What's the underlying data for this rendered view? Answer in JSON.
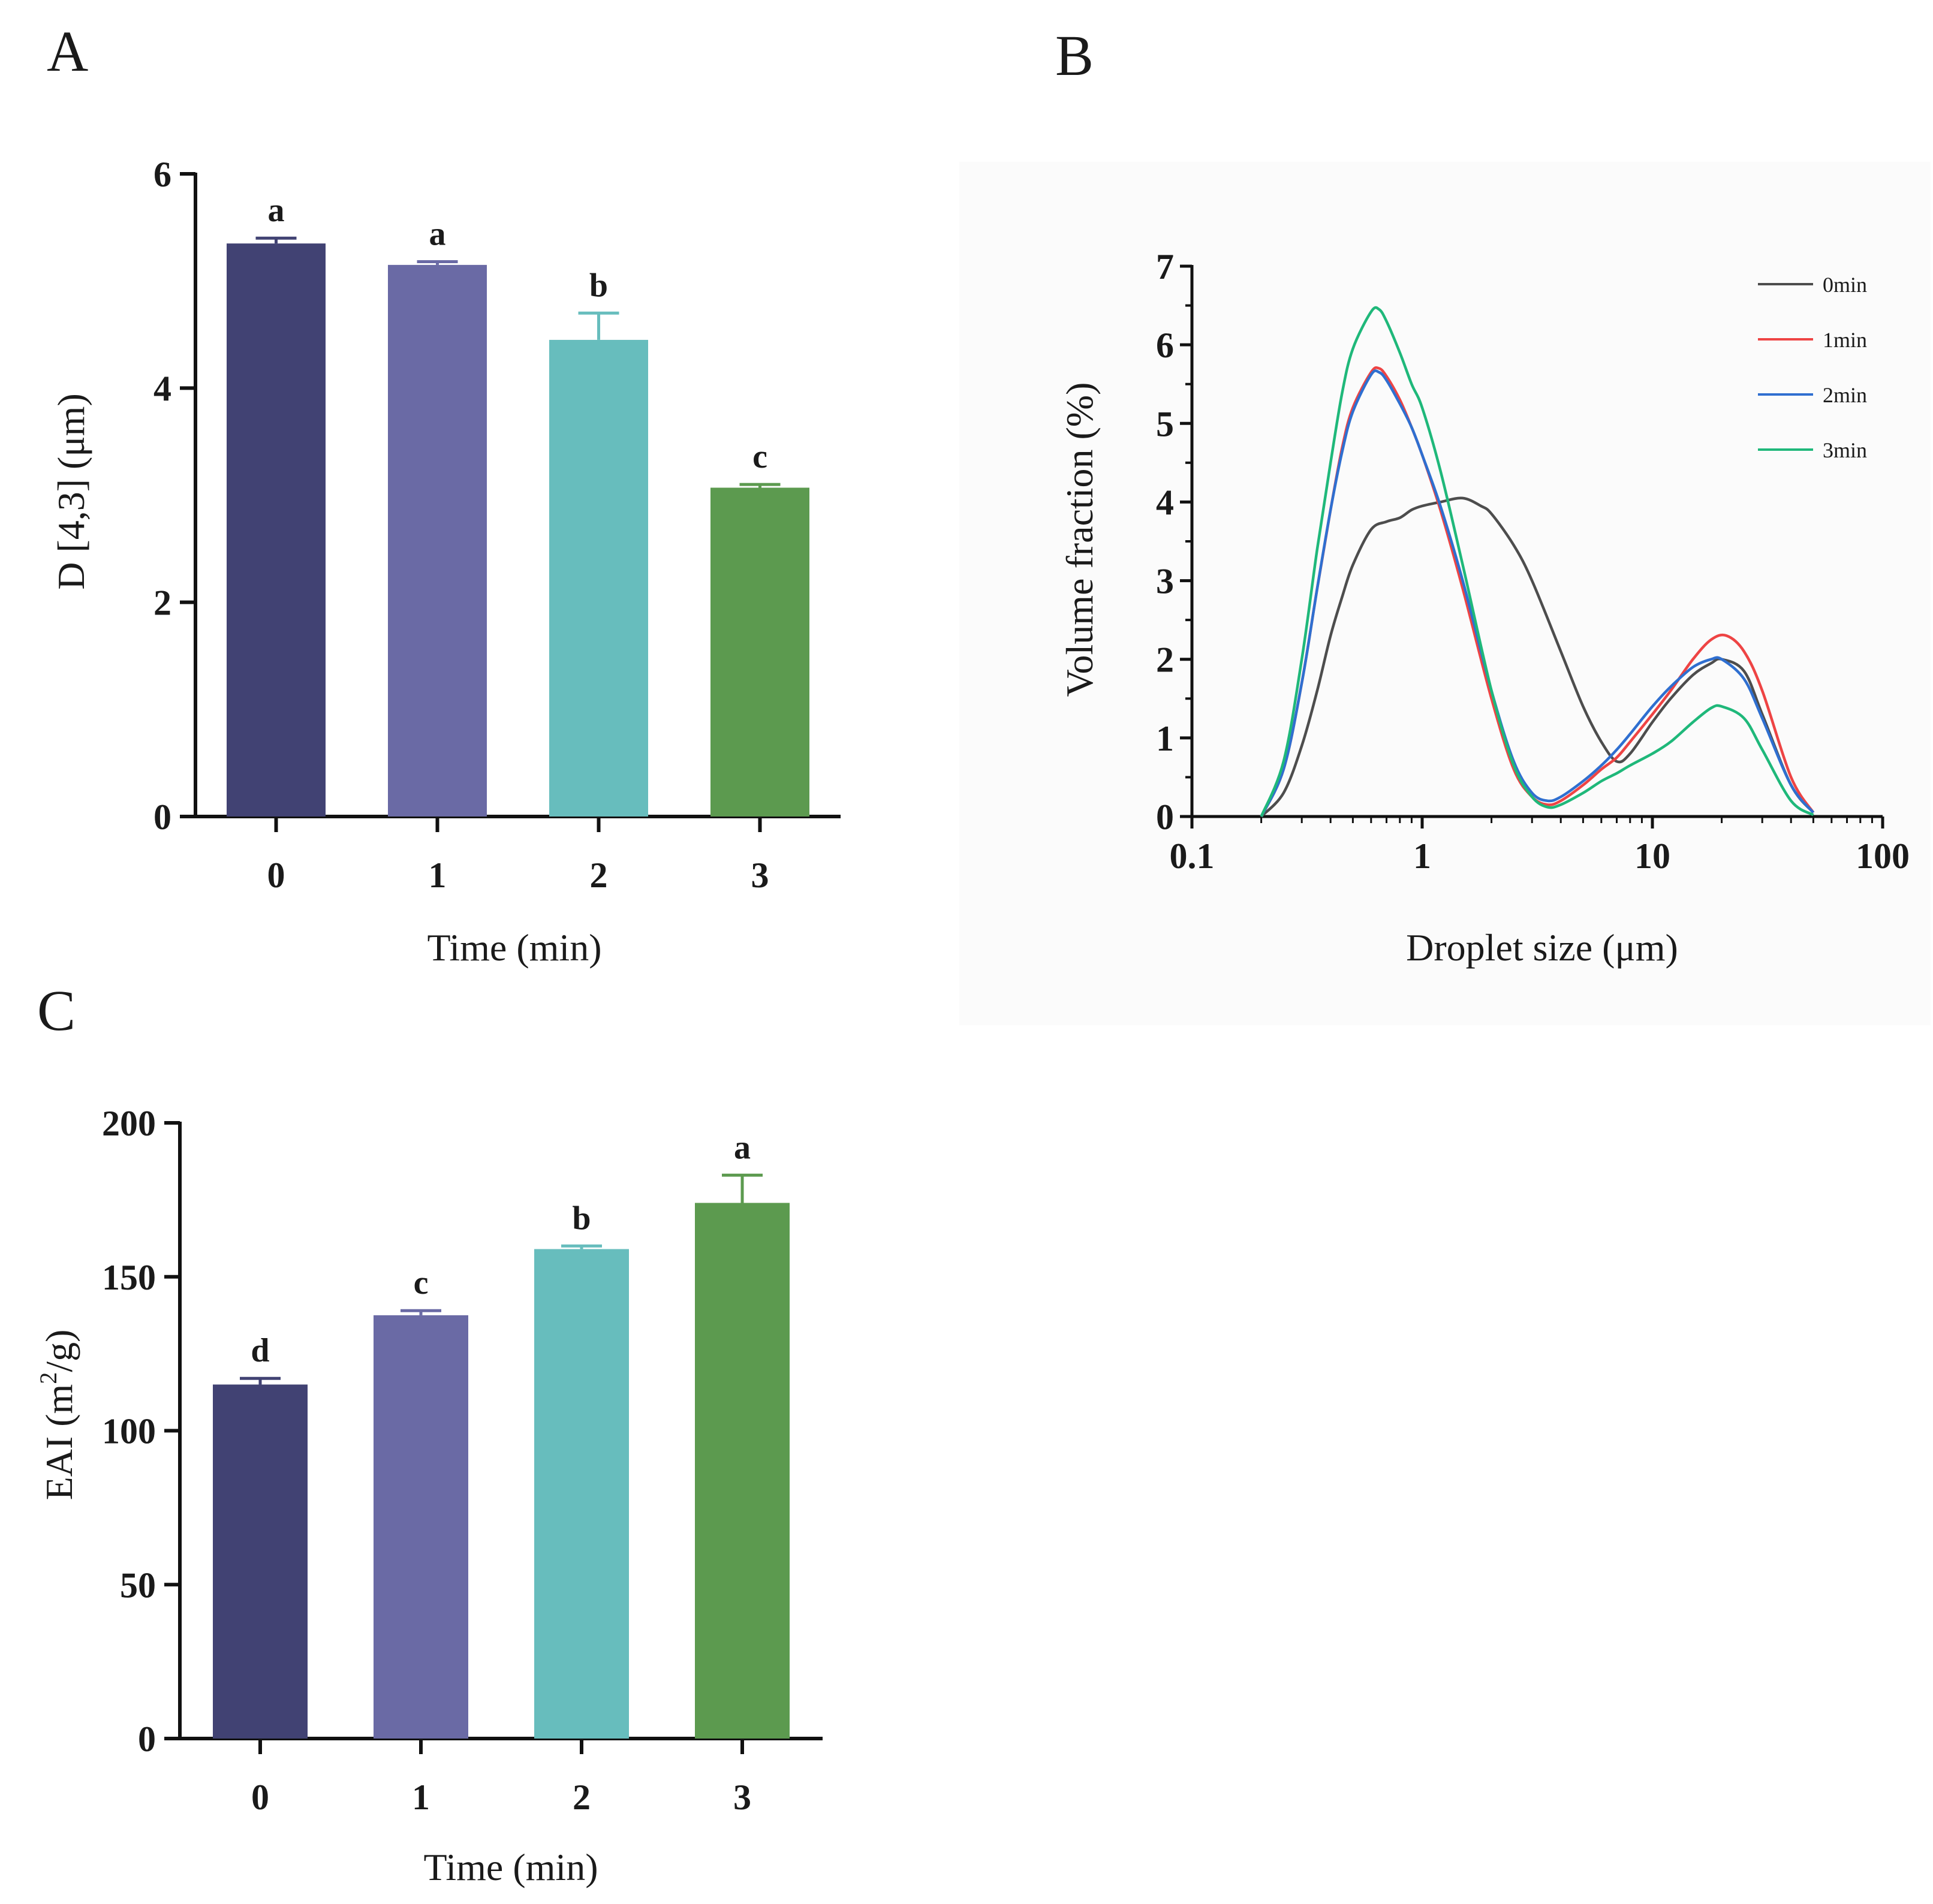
{
  "chart_data": [
    {
      "panel": "A",
      "type": "bar",
      "title": "",
      "xlabel": "Time (min)",
      "ylabel": "D [4,3] (μm)",
      "categories": [
        "0",
        "1",
        "2",
        "3"
      ],
      "values": [
        5.35,
        5.15,
        4.45,
        3.07
      ],
      "errors": [
        0.05,
        0.03,
        0.25,
        0.03
      ],
      "significance": [
        "a",
        "a",
        "b",
        "c"
      ],
      "ylim": [
        0,
        6
      ],
      "yticks": [
        0,
        2,
        4,
        6
      ],
      "colors": [
        "#414273",
        "#6a6aa5",
        "#67bdbd",
        "#5c9a4f"
      ],
      "grid": false
    },
    {
      "panel": "B",
      "type": "line",
      "title": "",
      "xlabel": "Droplet size (μm)",
      "ylabel": "Volume fraction (%)",
      "xscale": "log",
      "xlim": [
        0.1,
        100
      ],
      "ylim": [
        0,
        7
      ],
      "xticks": [
        "0.1",
        "1",
        "10",
        "100"
      ],
      "yticks": [
        0,
        1,
        2,
        3,
        4,
        5,
        6,
        7
      ],
      "legend_position": "top-right",
      "grid": false,
      "series": [
        {
          "name": "0min",
          "color": "#4d4d4d",
          "x": [
            0.2,
            0.25,
            0.3,
            0.35,
            0.4,
            0.45,
            0.5,
            0.6,
            0.7,
            0.8,
            0.9,
            1.0,
            1.2,
            1.5,
            1.8,
            2.0,
            2.5,
            3.0,
            4.0,
            5.0,
            6.0,
            7.0,
            8.0,
            10.0,
            12.0,
            15.0,
            18.0,
            20.0,
            25.0,
            30.0,
            40.0,
            50.0
          ],
          "y": [
            0,
            0.3,
            0.9,
            1.6,
            2.3,
            2.8,
            3.2,
            3.65,
            3.75,
            3.8,
            3.9,
            3.95,
            4.0,
            4.05,
            3.95,
            3.85,
            3.45,
            3.0,
            2.1,
            1.4,
            0.95,
            0.7,
            0.8,
            1.2,
            1.5,
            1.8,
            1.95,
            2.0,
            1.85,
            1.3,
            0.4,
            0.05
          ]
        },
        {
          "name": "1min",
          "color": "#ee4444",
          "x": [
            0.2,
            0.25,
            0.3,
            0.35,
            0.4,
            0.45,
            0.5,
            0.6,
            0.65,
            0.7,
            0.8,
            0.9,
            1.0,
            1.2,
            1.5,
            2.0,
            2.5,
            3.0,
            3.5,
            4.0,
            5.0,
            6.0,
            7.0,
            8.0,
            10.0,
            12.0,
            15.0,
            18.0,
            21.0,
            25.0,
            30.0,
            40.0,
            50.0
          ],
          "y": [
            0,
            0.6,
            1.7,
            2.9,
            3.9,
            4.7,
            5.2,
            5.65,
            5.7,
            5.6,
            5.3,
            4.95,
            4.6,
            3.9,
            2.9,
            1.5,
            0.6,
            0.25,
            0.15,
            0.2,
            0.4,
            0.6,
            0.75,
            0.95,
            1.3,
            1.6,
            2.0,
            2.25,
            2.3,
            2.1,
            1.6,
            0.5,
            0.05
          ]
        },
        {
          "name": "2min",
          "color": "#2f6fd0",
          "x": [
            0.2,
            0.25,
            0.3,
            0.35,
            0.4,
            0.45,
            0.5,
            0.6,
            0.65,
            0.7,
            0.8,
            0.9,
            1.0,
            1.2,
            1.5,
            2.0,
            2.5,
            3.0,
            3.5,
            4.0,
            5.0,
            6.0,
            7.0,
            8.0,
            10.0,
            12.0,
            15.0,
            18.0,
            20.0,
            25.0,
            30.0,
            40.0,
            50.0
          ],
          "y": [
            0,
            0.6,
            1.7,
            2.9,
            3.9,
            4.65,
            5.15,
            5.62,
            5.65,
            5.55,
            5.25,
            4.95,
            4.6,
            3.95,
            3.0,
            1.6,
            0.7,
            0.3,
            0.2,
            0.25,
            0.45,
            0.65,
            0.85,
            1.05,
            1.4,
            1.65,
            1.9,
            2.0,
            2.0,
            1.75,
            1.25,
            0.4,
            0.05
          ]
        },
        {
          "name": "3min",
          "color": "#1fb87a",
          "x": [
            0.2,
            0.25,
            0.3,
            0.35,
            0.4,
            0.45,
            0.5,
            0.6,
            0.65,
            0.7,
            0.8,
            0.9,
            1.0,
            1.2,
            1.5,
            2.0,
            2.5,
            3.0,
            3.5,
            4.0,
            5.0,
            6.0,
            7.0,
            8.0,
            10.0,
            12.0,
            15.0,
            18.0,
            20.0,
            25.0,
            30.0,
            40.0,
            50.0
          ],
          "y": [
            0,
            0.7,
            2.0,
            3.4,
            4.5,
            5.4,
            5.95,
            6.42,
            6.45,
            6.3,
            5.9,
            5.5,
            5.2,
            4.4,
            3.2,
            1.6,
            0.65,
            0.25,
            0.12,
            0.15,
            0.3,
            0.45,
            0.55,
            0.65,
            0.8,
            0.95,
            1.2,
            1.38,
            1.4,
            1.25,
            0.85,
            0.2,
            0.02
          ]
        }
      ]
    },
    {
      "panel": "C",
      "type": "bar",
      "title": "",
      "xlabel": "Time (min)",
      "ylabel": "EAI (m2/g)",
      "ylabel_parts": {
        "prefix": "EAI (m",
        "superscript": "2",
        "suffix": "/g)"
      },
      "categories": [
        "0",
        "1",
        "2",
        "3"
      ],
      "values": [
        115,
        137.5,
        159,
        174
      ],
      "errors": [
        2,
        1.5,
        1,
        9
      ],
      "significance": [
        "d",
        "c",
        "b",
        "a"
      ],
      "ylim": [
        0,
        200
      ],
      "yticks": [
        0,
        50,
        100,
        150,
        200
      ],
      "colors": [
        "#414273",
        "#6a6aa5",
        "#67bdbd",
        "#5c9a4f"
      ],
      "grid": false
    }
  ]
}
